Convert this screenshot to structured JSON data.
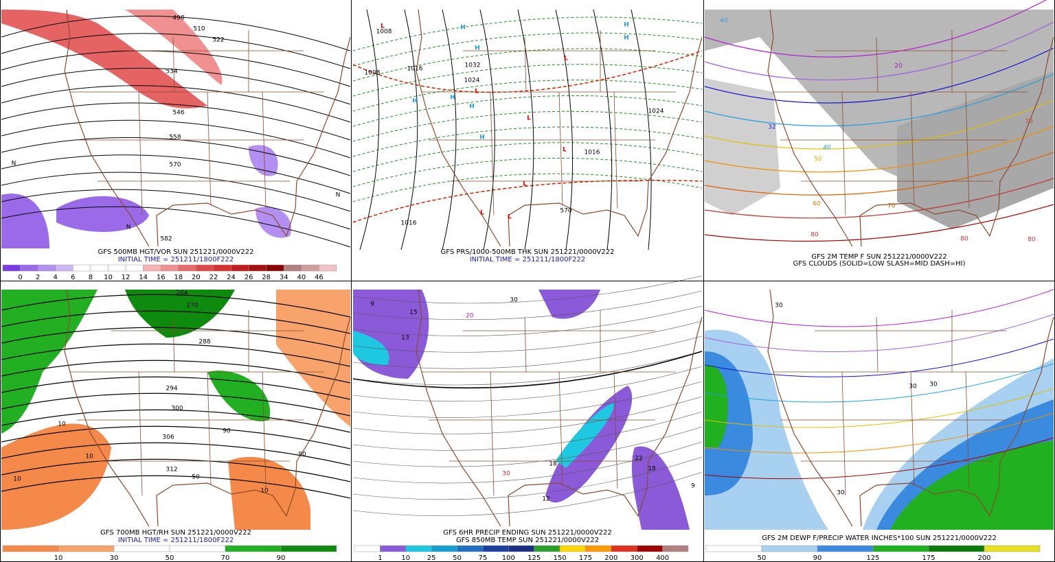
{
  "panels": [
    {
      "caption": [
        "GFS 500MB HGT/VOR SUN 251221/0000V222",
        "INITIAL TIME = 251211/1800F222"
      ],
      "map_labels": [
        "498",
        "510",
        "522",
        "534",
        "546",
        "558",
        "570",
        "582",
        "N",
        "N",
        "N"
      ],
      "colorbar": {
        "labels": [
          "0",
          "2",
          "4",
          "6",
          "8",
          "10",
          "12",
          "14",
          "16",
          "18",
          "20",
          "22",
          "24",
          "26",
          "28",
          "34",
          "40",
          "46"
        ],
        "colors": [
          "#7a3be6",
          "#9a6ae9",
          "#b28ff0",
          "#ccb6f6",
          "#ffffff",
          "#ffffff",
          "#ffffff",
          "#ffffff",
          "#f7b3b3",
          "#f09090",
          "#e86a6a",
          "#e04848",
          "#d63030",
          "#c21c1c",
          "#a80f0f",
          "#8a0606",
          "#b28080",
          "#d0a0a0",
          "#f0c4c4"
        ]
      }
    },
    {
      "caption": [
        "GFS PRS/1000-500MB THK SUN 251221/0000V222",
        "INITIAL TIME = 251211/1800F222"
      ],
      "map_labels": [
        "L",
        "H",
        "H",
        "H",
        "H",
        "H",
        "H",
        "H",
        "H",
        "L",
        "L",
        "L",
        "L",
        "L",
        "L",
        "L",
        "1008",
        "1008",
        "1016",
        "1032",
        "1024",
        "1024",
        "1016",
        "1016",
        "570"
      ]
    },
    {
      "caption": [
        "GFS 2M TEMP F SUN 251221/0000V222",
        "GFS CLOUDS (SOLID=LOW SLASH=MID DASH=HI)"
      ],
      "map_labels": [
        "40",
        "32",
        "40",
        "50",
        "60",
        "70",
        "80",
        "80",
        "80",
        "20",
        "70"
      ]
    },
    {
      "caption": [
        "GFS 700MB HGT/RH SUN 251221/0000V222",
        "INITIAL TIME = 251211/1800F222"
      ],
      "map_labels": [
        "264",
        "270",
        "288",
        "294",
        "300",
        "306",
        "312",
        "10",
        "10",
        "10",
        "10",
        "90",
        "90",
        "50"
      ],
      "colorbar": {
        "labels": [
          "10",
          "30",
          "50",
          "70",
          "90"
        ],
        "colors": [
          "#f4894a",
          "#f7a36b",
          "#ffffff",
          "#ffffff",
          "#22b022",
          "#0e8a0e"
        ]
      }
    },
    {
      "caption": [
        "GFS 6HR PRECIP ENDING SUN 251221/0000V222",
        "GFS 850MB TEMP SUN 251221/0000V222"
      ],
      "map_labels": [
        "13",
        "15",
        "18",
        "12",
        "22",
        "18",
        "9",
        "9",
        "20",
        "30",
        "30"
      ],
      "colorbar": {
        "labels": [
          "1",
          "10",
          "25",
          "50",
          "75",
          "100",
          "125",
          "150",
          "175",
          "200",
          "300",
          "400"
        ],
        "colors": [
          "#ffffff",
          "#8a5ad8",
          "#1ec8e0",
          "#14a0d0",
          "#1f70c0",
          "#1a40a0",
          "#1b2f80",
          "#2aa02a",
          "#ffd700",
          "#ff9900",
          "#e03020",
          "#a00000",
          "#b08080"
        ]
      }
    },
    {
      "caption": [
        "GFS 2M DEWP F/PRECIP WATER INCHES*100 SUN 251221/0000V222"
      ],
      "map_labels": [
        "30",
        "30",
        "30",
        "30"
      ],
      "colorbar": {
        "labels": [
          "50",
          "90",
          "125",
          "175",
          "200"
        ],
        "colors": [
          "#ffffff",
          "#a8d0f0",
          "#3a8ae0",
          "#20b020",
          "#0a7a0a",
          "#e8e020"
        ]
      }
    }
  ]
}
